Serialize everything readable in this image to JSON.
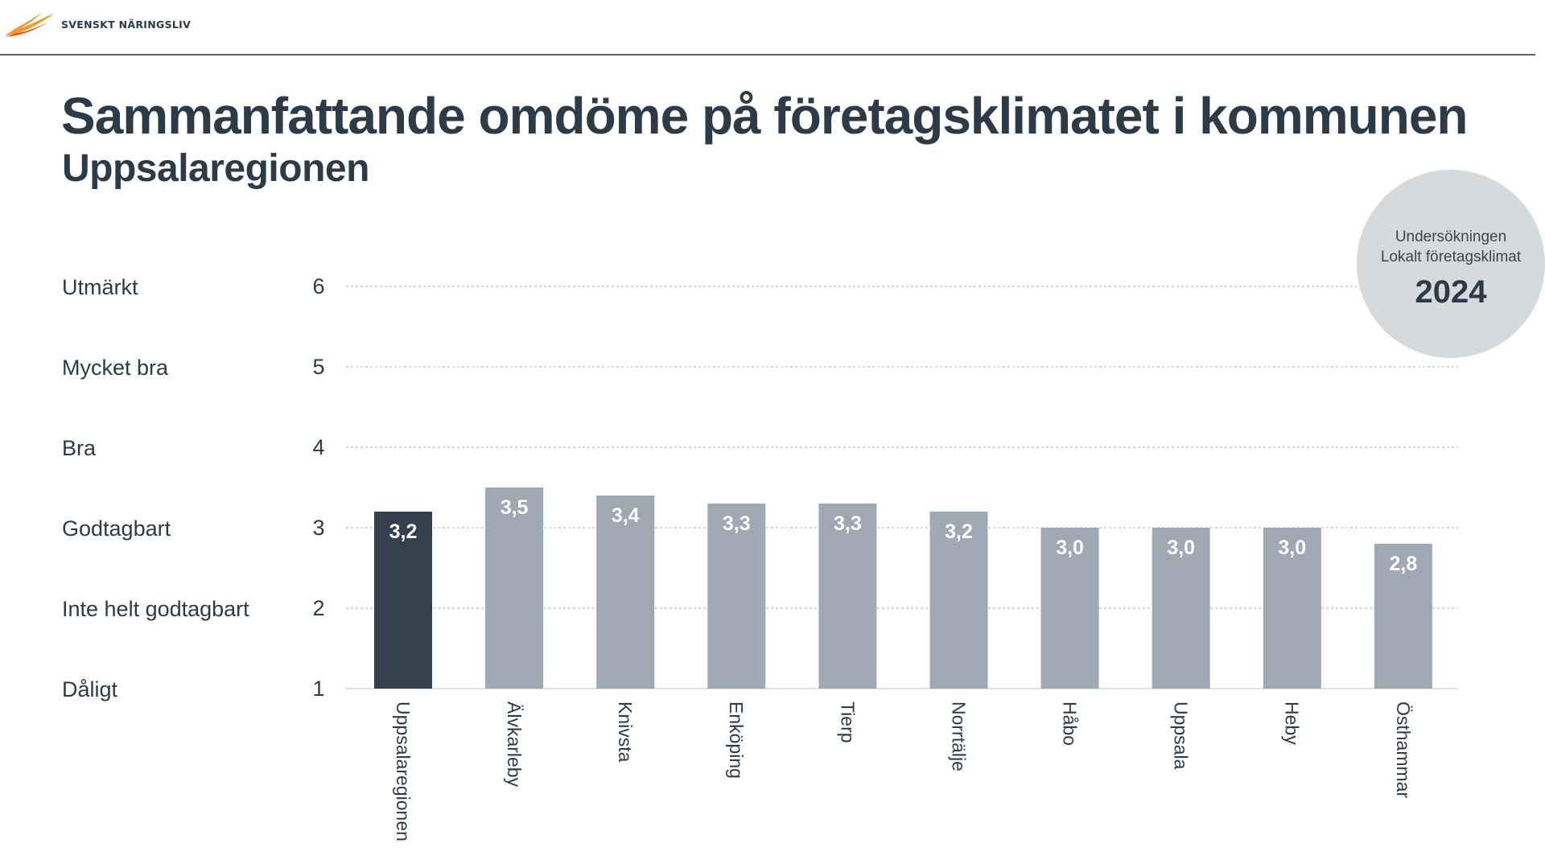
{
  "header": {
    "logo_text": "SVENSKT NÄRINGSLIV"
  },
  "title": "Sammanfattande omdöme på företagsklimatet i kommunen",
  "subtitle": "Uppsalaregionen",
  "badge": {
    "line1": "Undersökningen",
    "line2": "Lokalt  företagsklimat",
    "year": "2024"
  },
  "colors": {
    "text": "#2d3a48",
    "highlight_bar": "#34404d",
    "bar": "#9ea9b3",
    "badge_bg": "#d7dadd",
    "logo_orange": "#f39a1f",
    "logo_red": "#e2522a"
  },
  "chart_data": {
    "type": "bar",
    "title": "Sammanfattande omdöme på företagsklimatet i kommunen",
    "subtitle": "Uppsalaregionen",
    "xlabel": "",
    "ylabel": "",
    "ylim": [
      1,
      6
    ],
    "yticks": [
      1,
      2,
      3,
      4,
      5,
      6
    ],
    "ytick_labels": [
      "1",
      "2",
      "3",
      "4",
      "5",
      "6"
    ],
    "rating_labels": [
      {
        "value": 6,
        "label": "Utmärkt"
      },
      {
        "value": 5,
        "label": "Mycket bra"
      },
      {
        "value": 4,
        "label": "Bra"
      },
      {
        "value": 3,
        "label": "Godtagbart"
      },
      {
        "value": 2,
        "label": "Inte helt godtagbart"
      },
      {
        "value": 1,
        "label": "Dåligt"
      }
    ],
    "grid": true,
    "categories": [
      "Uppsalaregionen",
      "Älvkarleby",
      "Knivsta",
      "Enköping",
      "Tierp",
      "Norrtälje",
      "Håbo",
      "Uppsala",
      "Heby",
      "Östhammar"
    ],
    "values": [
      3.2,
      3.5,
      3.4,
      3.3,
      3.3,
      3.2,
      3.0,
      3.0,
      3.0,
      2.8
    ],
    "data_labels": [
      "3,2",
      "3,5",
      "3,4",
      "3,3",
      "3,3",
      "3,2",
      "3,0",
      "3,0",
      "3,0",
      "2,8"
    ],
    "highlight": "Uppsalaregionen"
  }
}
